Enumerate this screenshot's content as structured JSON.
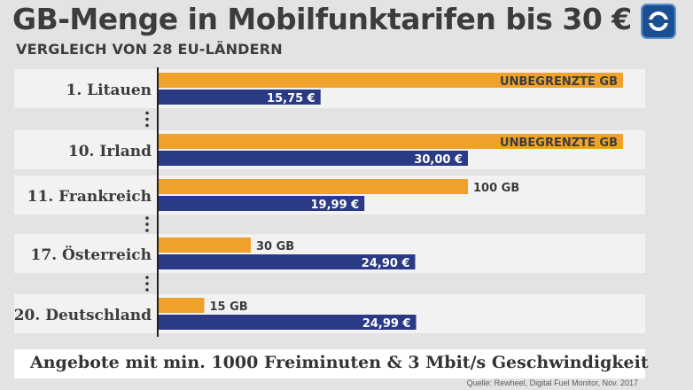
{
  "header": {
    "title": "GB-Menge in Mobilfunktarifen bis 30 €",
    "subtitle": "VERGLEICH VON 28 EU-LÄNDERN",
    "logo_icon": "ard-tagesschau-logo-icon"
  },
  "footer": {
    "note": "Angebote mit min. 1000 Freiminuten & 3 Mbit/s Geschwindigkeit",
    "source": "Quelle: Rewheel, Digital Fuel Monitor, Nov. 2017"
  },
  "colors": {
    "data_bar": "#f0a12a",
    "price_bar": "#2a3a85",
    "row_band": "#f2f2f2",
    "axis": "#222222",
    "text": "#3c3c3c"
  },
  "chart_data": {
    "type": "bar",
    "orientation": "horizontal",
    "categories": [
      "1. Litauen",
      "10. Irland",
      "11. Frankreich",
      "17. Österreich",
      "20. Deutschland"
    ],
    "gap_after": [
      0,
      2,
      3
    ],
    "series": [
      {
        "values": [
          null,
          null,
          100,
          30,
          15
        ],
        "labels": [
          "UNBEGRENZTE GB",
          "UNBEGRENZTE GB",
          "100 GB",
          "30 GB",
          "15 GB"
        ]
      },
      {
        "values": [
          15.75,
          30.0,
          19.99,
          24.9,
          24.99
        ],
        "labels": [
          "15,75 €",
          "30,00 €",
          "19,99 €",
          "24,90 €",
          "24,99 €"
        ]
      }
    ],
    "xlabel": "",
    "ylabel": "",
    "grid": false
  }
}
